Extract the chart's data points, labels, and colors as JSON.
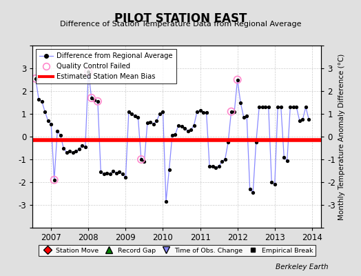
{
  "title": "PILOT STATION EAST",
  "subtitle": "Difference of Station Temperature Data from Regional Average",
  "ylabel_right": "Monthly Temperature Anomaly Difference (°C)",
  "bias_value": -0.15,
  "xlim": [
    2006.5,
    2014.25
  ],
  "ylim": [
    -4,
    4
  ],
  "yticks": [
    -4,
    -3,
    -2,
    -1,
    0,
    1,
    2,
    3,
    4
  ],
  "xticks": [
    2007,
    2008,
    2009,
    2010,
    2011,
    2012,
    2013,
    2014
  ],
  "background_color": "#e0e0e0",
  "plot_bg_color": "#ffffff",
  "line_color": "#8888ff",
  "marker_color": "#000000",
  "bias_color": "#ff0000",
  "qc_color": "#ff88cc",
  "footer": "Berkeley Earth",
  "time_series": [
    [
      2006.583,
      2.55
    ],
    [
      2006.667,
      1.65
    ],
    [
      2006.75,
      1.55
    ],
    [
      2006.833,
      1.1
    ],
    [
      2006.917,
      0.7
    ],
    [
      2007.0,
      0.55
    ],
    [
      2007.083,
      -1.9
    ],
    [
      2007.167,
      0.25
    ],
    [
      2007.25,
      0.05
    ],
    [
      2007.333,
      -0.5
    ],
    [
      2007.417,
      -0.7
    ],
    [
      2007.5,
      -0.65
    ],
    [
      2007.583,
      -0.7
    ],
    [
      2007.667,
      -0.65
    ],
    [
      2007.75,
      -0.55
    ],
    [
      2007.833,
      -0.4
    ],
    [
      2007.917,
      -0.45
    ],
    [
      2008.0,
      2.85
    ],
    [
      2008.083,
      1.7
    ],
    [
      2008.167,
      1.6
    ],
    [
      2008.25,
      1.55
    ],
    [
      2008.333,
      -1.55
    ],
    [
      2008.417,
      -1.65
    ],
    [
      2008.5,
      -1.6
    ],
    [
      2008.583,
      -1.65
    ],
    [
      2008.667,
      -1.5
    ],
    [
      2008.75,
      -1.6
    ],
    [
      2008.833,
      -1.55
    ],
    [
      2008.917,
      -1.65
    ],
    [
      2009.0,
      -1.8
    ],
    [
      2009.083,
      1.1
    ],
    [
      2009.167,
      1.0
    ],
    [
      2009.25,
      0.9
    ],
    [
      2009.333,
      0.85
    ],
    [
      2009.417,
      -1.0
    ],
    [
      2009.5,
      -1.1
    ],
    [
      2009.583,
      0.6
    ],
    [
      2009.667,
      0.65
    ],
    [
      2009.75,
      0.55
    ],
    [
      2009.833,
      0.7
    ],
    [
      2009.917,
      1.0
    ],
    [
      2010.0,
      1.1
    ],
    [
      2010.083,
      -2.85
    ],
    [
      2010.167,
      -1.45
    ],
    [
      2010.25,
      0.05
    ],
    [
      2010.333,
      0.1
    ],
    [
      2010.417,
      0.5
    ],
    [
      2010.5,
      0.45
    ],
    [
      2010.583,
      0.35
    ],
    [
      2010.667,
      0.25
    ],
    [
      2010.75,
      0.3
    ],
    [
      2010.833,
      0.5
    ],
    [
      2010.917,
      1.1
    ],
    [
      2011.0,
      1.15
    ],
    [
      2011.083,
      1.05
    ],
    [
      2011.167,
      1.05
    ],
    [
      2011.25,
      -1.3
    ],
    [
      2011.333,
      -1.3
    ],
    [
      2011.417,
      -1.35
    ],
    [
      2011.5,
      -1.3
    ],
    [
      2011.583,
      -1.1
    ],
    [
      2011.667,
      -1.0
    ],
    [
      2011.75,
      -0.25
    ],
    [
      2011.833,
      1.1
    ],
    [
      2011.917,
      1.1
    ],
    [
      2012.0,
      2.5
    ],
    [
      2012.083,
      1.5
    ],
    [
      2012.167,
      0.85
    ],
    [
      2012.25,
      0.9
    ],
    [
      2012.333,
      -2.3
    ],
    [
      2012.417,
      -2.45
    ],
    [
      2012.5,
      -0.25
    ],
    [
      2012.583,
      1.3
    ],
    [
      2012.667,
      1.3
    ],
    [
      2012.75,
      1.3
    ],
    [
      2012.833,
      1.3
    ],
    [
      2012.917,
      -2.0
    ],
    [
      2013.0,
      -2.1
    ],
    [
      2013.083,
      1.3
    ],
    [
      2013.167,
      1.3
    ],
    [
      2013.25,
      -0.9
    ],
    [
      2013.333,
      -1.05
    ],
    [
      2013.417,
      1.3
    ],
    [
      2013.5,
      1.3
    ],
    [
      2013.583,
      1.3
    ],
    [
      2013.667,
      0.7
    ],
    [
      2013.75,
      0.75
    ],
    [
      2013.833,
      1.3
    ],
    [
      2013.917,
      0.75
    ]
  ],
  "qc_failed": [
    [
      2006.583,
      2.55
    ],
    [
      2007.083,
      -1.9
    ],
    [
      2008.0,
      2.85
    ],
    [
      2008.083,
      1.7
    ],
    [
      2008.25,
      1.55
    ],
    [
      2009.417,
      -1.0
    ],
    [
      2011.833,
      1.1
    ],
    [
      2012.0,
      2.5
    ]
  ]
}
